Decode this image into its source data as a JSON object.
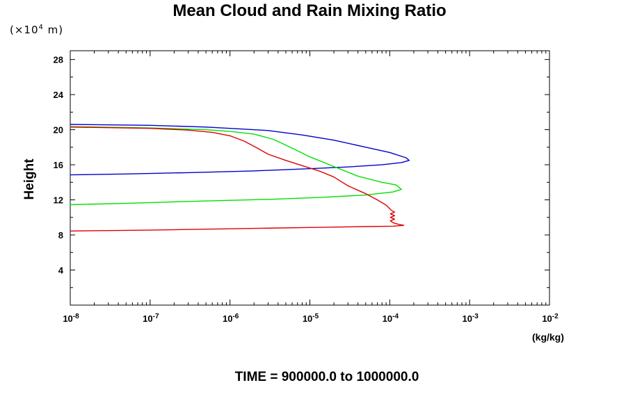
{
  "chart_data": {
    "type": "line",
    "title": "Mean Cloud and Rain Mixing Ratio",
    "ylabel": "Height",
    "ylabel_unit_prefix": "(×10",
    "ylabel_unit_exp": "4",
    "ylabel_unit_suffix": " m)",
    "xlabel_unit": "(kg/kg)",
    "footer": "TIME = 900000.0 to 1000000.0",
    "x_scale": "log",
    "xlim": [
      1e-08,
      0.01
    ],
    "ylim": [
      0,
      29
    ],
    "y_ticks": [
      4,
      8,
      12,
      16,
      20,
      24,
      28
    ],
    "x_ticks": [
      {
        "base": "10",
        "exp": "-8"
      },
      {
        "base": "10",
        "exp": "-7"
      },
      {
        "base": "10",
        "exp": "-6"
      },
      {
        "base": "10",
        "exp": "-5"
      },
      {
        "base": "10",
        "exp": "-4"
      },
      {
        "base": "10",
        "exp": "-3"
      },
      {
        "base": "10",
        "exp": "-2"
      }
    ],
    "grid": false,
    "series": [
      {
        "color": "#0000cc",
        "points": [
          [
            1e-08,
            20.6
          ],
          [
            1e-07,
            20.5
          ],
          [
            5e-07,
            20.3
          ],
          [
            1e-06,
            20.15
          ],
          [
            3e-06,
            19.9
          ],
          [
            8e-06,
            19.4
          ],
          [
            2e-05,
            18.8
          ],
          [
            5e-05,
            18.0
          ],
          [
            0.0001,
            17.4
          ],
          [
            0.00016,
            16.8
          ],
          [
            0.000175,
            16.5
          ],
          [
            0.00014,
            16.25
          ],
          [
            8e-05,
            16.0
          ],
          [
            3e-05,
            15.75
          ],
          [
            1e-05,
            15.55
          ],
          [
            2e-06,
            15.3
          ],
          [
            3e-07,
            15.1
          ],
          [
            5e-08,
            14.95
          ],
          [
            1e-08,
            14.85
          ]
        ]
      },
      {
        "color": "#00e000",
        "points": [
          [
            1e-08,
            20.35
          ],
          [
            1e-07,
            20.2
          ],
          [
            5e-07,
            20.0
          ],
          [
            1e-06,
            19.8
          ],
          [
            2e-06,
            19.5
          ],
          [
            3.5e-06,
            18.9
          ],
          [
            6e-06,
            17.9
          ],
          [
            1e-05,
            16.9
          ],
          [
            2e-05,
            15.8
          ],
          [
            4e-05,
            14.7
          ],
          [
            8e-05,
            14.0
          ],
          [
            0.00012,
            13.7
          ],
          [
            0.00014,
            13.2
          ],
          [
            0.00011,
            12.9
          ],
          [
            5e-05,
            12.55
          ],
          [
            1.5e-05,
            12.3
          ],
          [
            3e-06,
            12.05
          ],
          [
            4e-07,
            11.85
          ],
          [
            5e-08,
            11.6
          ],
          [
            1e-08,
            11.45
          ]
        ]
      },
      {
        "color": "#dd0000",
        "points": [
          [
            1e-08,
            20.3
          ],
          [
            1e-07,
            20.15
          ],
          [
            3e-07,
            19.95
          ],
          [
            6e-07,
            19.7
          ],
          [
            1e-06,
            19.3
          ],
          [
            1.5e-06,
            18.7
          ],
          [
            2.2e-06,
            17.9
          ],
          [
            3e-06,
            17.2
          ],
          [
            5e-06,
            16.5
          ],
          [
            8e-06,
            15.9
          ],
          [
            1.3e-05,
            15.3
          ],
          [
            2e-05,
            14.6
          ],
          [
            3e-05,
            13.6
          ],
          [
            5e-05,
            12.7
          ],
          [
            7e-05,
            12.0
          ],
          [
            9e-05,
            11.4
          ],
          [
            0.000105,
            10.8
          ],
          [
            0.000115,
            10.6
          ],
          [
            0.000102,
            10.4
          ],
          [
            0.000115,
            10.2
          ],
          [
            0.000102,
            10.0
          ],
          [
            0.000115,
            9.8
          ],
          [
            0.000102,
            9.6
          ],
          [
            0.00011,
            9.4
          ],
          [
            0.00013,
            9.2
          ],
          [
            0.00015,
            9.1
          ],
          [
            0.00011,
            9.0
          ],
          [
            5e-05,
            8.95
          ],
          [
            1e-05,
            8.85
          ],
          [
            1e-06,
            8.7
          ],
          [
            1e-07,
            8.55
          ],
          [
            1e-08,
            8.45
          ]
        ]
      }
    ]
  }
}
